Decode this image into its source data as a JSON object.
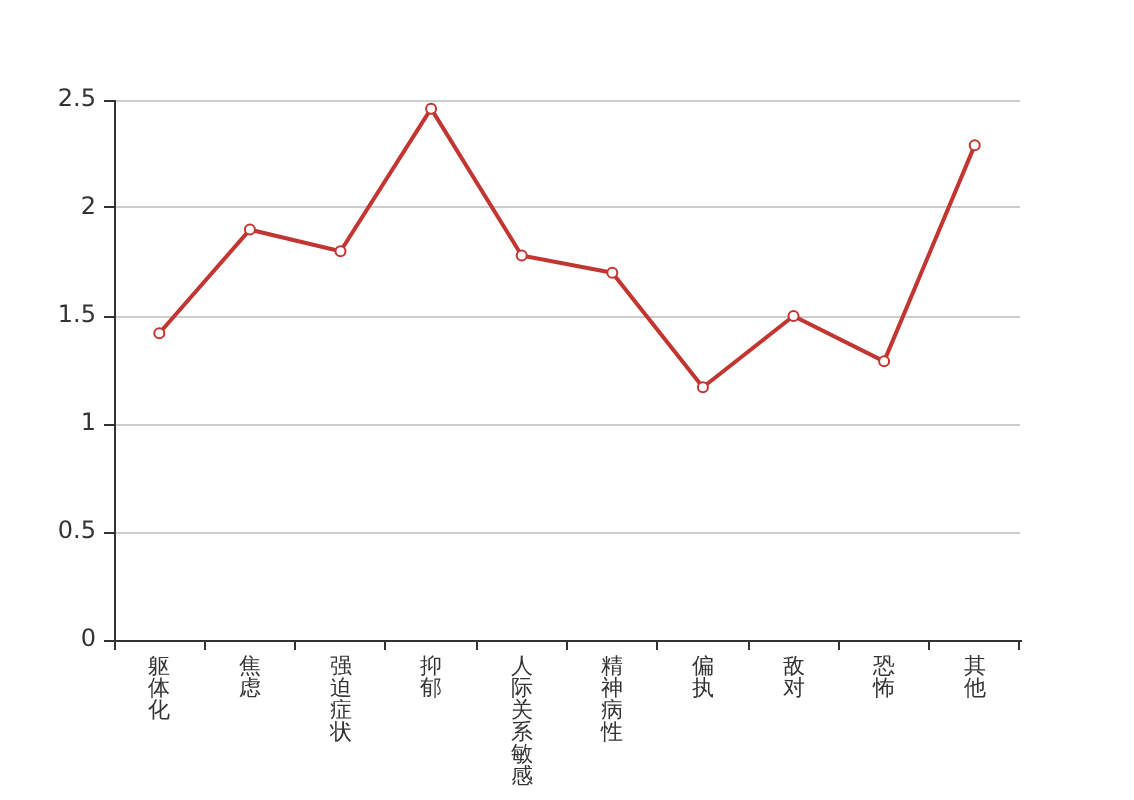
{
  "chart_data": {
    "type": "line",
    "categories": [
      "躯体化",
      "焦虑",
      "强迫症状",
      "抑郁",
      "人际关系敏感",
      "精神病性",
      "偏执",
      "敌对",
      "恐怖",
      "其他"
    ],
    "series": [
      {
        "color": "#c23531",
        "values": [
          1.42,
          1.9,
          1.8,
          2.46,
          1.78,
          1.7,
          1.17,
          1.5,
          1.29,
          2.29
        ]
      }
    ],
    "ylim": [
      0,
      2.5
    ],
    "yticks": [
      0,
      0.5,
      1,
      1.5,
      2,
      2.5
    ],
    "grid": "y",
    "legend": false,
    "marker": "circle",
    "line_style": "solid"
  }
}
